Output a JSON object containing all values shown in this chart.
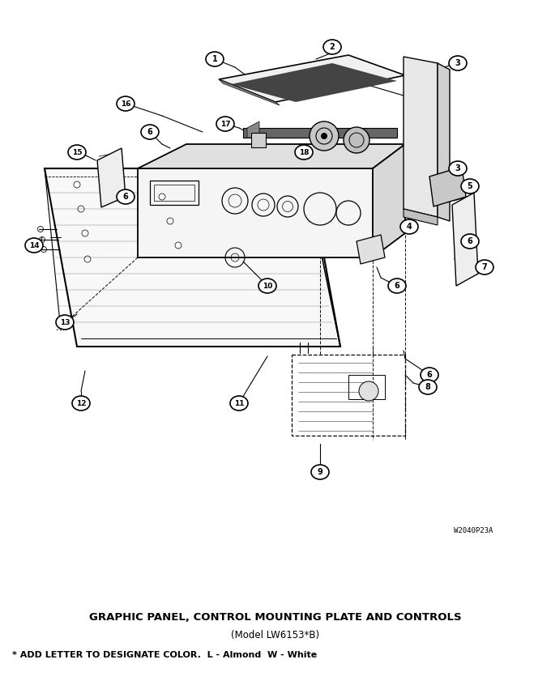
{
  "title_line1": "GRAPHIC PANEL, CONTROL MOUNTING PLATE AND CONTROLS",
  "title_line2": "(Model LW6153*B)",
  "footnote": "* ADD LETTER TO DESIGNATE COLOR.  L - Almond  W - White",
  "watermark": "W2040P23A",
  "bg_color": "#ffffff",
  "dc": "#000000",
  "fig_width": 6.8,
  "fig_height": 8.46,
  "dpi": 100
}
